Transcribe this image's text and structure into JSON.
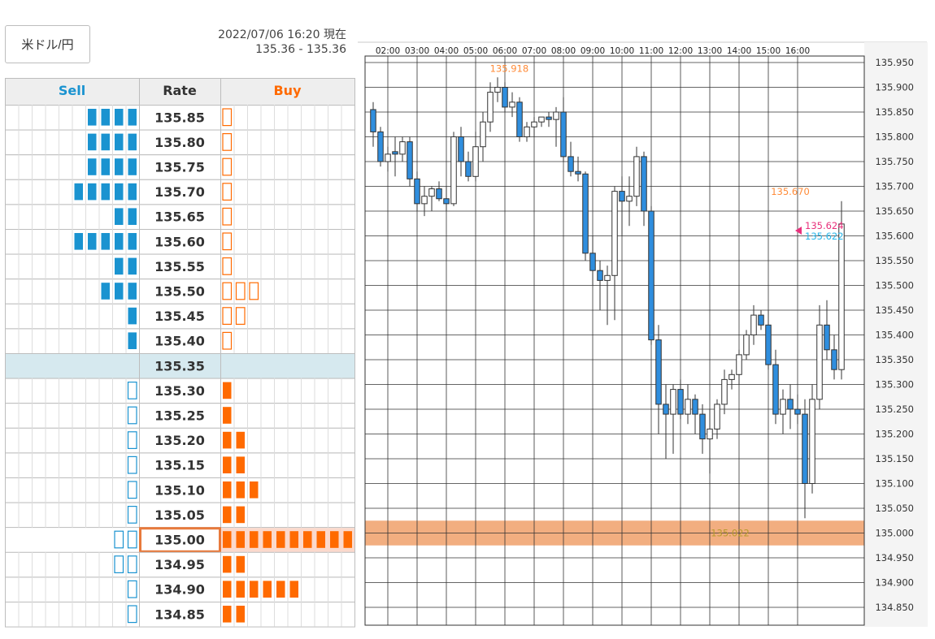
{
  "pair_label": "米ドル/円",
  "status": {
    "datetime": "2022/07/06 16:20 現在",
    "quote": "135.36 - 135.36"
  },
  "orderbook": {
    "headers": {
      "sell": "Sell",
      "rate": "Rate",
      "buy": "Buy"
    },
    "colors": {
      "sell": "#1a93d0",
      "buy": "#ff6a00",
      "current_row": "#d6e9ef",
      "highlight_border": "#e87a3c",
      "highlight_fill": "#fbd9cc"
    },
    "current_rate": "135.35",
    "highlight_rate": "135.00",
    "rows": [
      {
        "rate": "135.85",
        "sell": 4,
        "buy": 1
      },
      {
        "rate": "135.80",
        "sell": 4,
        "buy": 1
      },
      {
        "rate": "135.75",
        "sell": 4,
        "buy": 1
      },
      {
        "rate": "135.70",
        "sell": 5,
        "buy": 1
      },
      {
        "rate": "135.65",
        "sell": 2,
        "buy": 1
      },
      {
        "rate": "135.60",
        "sell": 5,
        "buy": 1
      },
      {
        "rate": "135.55",
        "sell": 2,
        "buy": 1
      },
      {
        "rate": "135.50",
        "sell": 3,
        "buy": 3
      },
      {
        "rate": "135.45",
        "sell": 1,
        "buy": 2
      },
      {
        "rate": "135.40",
        "sell": 1,
        "buy": 1
      },
      {
        "rate": "135.35",
        "sell": 0,
        "buy": 0
      },
      {
        "rate": "135.30",
        "sell": 1,
        "buy": 1
      },
      {
        "rate": "135.25",
        "sell": 1,
        "buy": 1
      },
      {
        "rate": "135.20",
        "sell": 1,
        "buy": 2
      },
      {
        "rate": "135.15",
        "sell": 1,
        "buy": 2
      },
      {
        "rate": "135.10",
        "sell": 1,
        "buy": 3
      },
      {
        "rate": "135.05",
        "sell": 1,
        "buy": 2
      },
      {
        "rate": "135.00",
        "sell": 2,
        "buy": 10
      },
      {
        "rate": "134.95",
        "sell": 2,
        "buy": 2
      },
      {
        "rate": "134.90",
        "sell": 1,
        "buy": 6
      },
      {
        "rate": "134.85",
        "sell": 1,
        "buy": 2
      }
    ]
  },
  "chart_data": {
    "type": "candlestick",
    "x_ticks": [
      "02:00",
      "03:00",
      "04:00",
      "05:00",
      "06:00",
      "07:00",
      "08:00",
      "09:00",
      "10:00",
      "11:00",
      "12:00",
      "13:00",
      "14:00",
      "15:00",
      "16:00"
    ],
    "y_ticks": [
      "135.950",
      "135.900",
      "135.850",
      "135.800",
      "135.750",
      "135.700",
      "135.650",
      "135.600",
      "135.550",
      "135.500",
      "135.450",
      "135.400",
      "135.350",
      "135.300",
      "135.250",
      "135.200",
      "135.150",
      "135.100",
      "135.050",
      "135.000",
      "134.950",
      "134.900",
      "134.850"
    ],
    "ylim": [
      134.85,
      135.95
    ],
    "grid": true,
    "colors": {
      "up_fill": "#ffffff",
      "down_fill": "#2f8ede",
      "candle_border": "#333333",
      "grid": "#333333",
      "band": "#f0a06a",
      "high_label": "#ff8b38",
      "ask_label": "#e8317c",
      "bid_label": "#28b5e8",
      "band_label": "#b89a2c"
    },
    "band": {
      "from": 134.975,
      "to": 135.025,
      "label": "135.022",
      "label_value": 135.0
    },
    "annotations": [
      {
        "text": "135.918",
        "x": 5.15,
        "y": 135.918,
        "color_key": "high_label"
      },
      {
        "text": "135.670",
        "x": 14.75,
        "y": 135.67,
        "color_key": "high_label"
      }
    ],
    "price_markers": [
      {
        "text": "135.624",
        "value": 135.624,
        "color_key": "ask_label"
      },
      {
        "text": "135.622",
        "value": 135.622,
        "color_key": "bid_label"
      }
    ],
    "candles": [
      [
        0.5,
        135.855,
        135.87,
        135.78,
        135.81
      ],
      [
        0.75,
        135.81,
        135.82,
        135.74,
        135.75
      ],
      [
        1.0,
        135.75,
        135.78,
        135.73,
        135.765
      ],
      [
        1.25,
        135.77,
        135.8,
        135.72,
        135.765
      ],
      [
        1.5,
        135.765,
        135.8,
        135.75,
        135.79
      ],
      [
        1.75,
        135.79,
        135.8,
        135.7,
        135.715
      ],
      [
        2.0,
        135.715,
        135.73,
        135.65,
        135.665
      ],
      [
        2.25,
        135.665,
        135.7,
        135.64,
        135.68
      ],
      [
        2.5,
        135.68,
        135.7,
        135.65,
        135.695
      ],
      [
        2.75,
        135.695,
        135.71,
        135.67,
        135.675
      ],
      [
        3.0,
        135.675,
        135.7,
        135.65,
        135.665
      ],
      [
        3.25,
        135.665,
        135.81,
        135.66,
        135.8
      ],
      [
        3.5,
        135.8,
        135.82,
        135.72,
        135.75
      ],
      [
        3.75,
        135.75,
        135.77,
        135.71,
        135.72
      ],
      [
        4.0,
        135.72,
        135.81,
        135.71,
        135.78
      ],
      [
        4.25,
        135.78,
        135.85,
        135.75,
        135.83
      ],
      [
        4.5,
        135.83,
        135.91,
        135.81,
        135.89
      ],
      [
        4.75,
        135.89,
        135.92,
        135.87,
        135.9
      ],
      [
        5.0,
        135.9,
        135.91,
        135.85,
        135.86
      ],
      [
        5.25,
        135.86,
        135.89,
        135.84,
        135.87
      ],
      [
        5.5,
        135.87,
        135.88,
        135.79,
        135.8
      ],
      [
        5.75,
        135.8,
        135.83,
        135.79,
        135.82
      ],
      [
        6.0,
        135.82,
        135.84,
        135.8,
        135.83
      ],
      [
        6.25,
        135.83,
        135.84,
        135.82,
        135.84
      ],
      [
        6.5,
        135.84,
        135.85,
        135.82,
        135.835
      ],
      [
        6.75,
        135.835,
        135.86,
        135.78,
        135.85
      ],
      [
        7.0,
        135.85,
        135.88,
        135.75,
        135.76
      ],
      [
        7.25,
        135.76,
        135.79,
        135.72,
        135.73
      ],
      [
        7.5,
        135.73,
        135.76,
        135.71,
        135.725
      ],
      [
        7.75,
        135.725,
        135.73,
        135.55,
        135.565
      ],
      [
        8.0,
        135.565,
        135.6,
        135.5,
        135.53
      ],
      [
        8.25,
        135.53,
        135.55,
        135.45,
        135.51
      ],
      [
        8.5,
        135.51,
        135.54,
        135.42,
        135.52
      ],
      [
        8.75,
        135.52,
        135.7,
        135.43,
        135.69
      ],
      [
        9.0,
        135.69,
        135.72,
        135.6,
        135.67
      ],
      [
        9.25,
        135.67,
        135.72,
        135.62,
        135.68
      ],
      [
        9.5,
        135.68,
        135.78,
        135.66,
        135.76
      ],
      [
        9.75,
        135.76,
        135.77,
        135.62,
        135.65
      ],
      [
        10.0,
        135.65,
        135.66,
        135.38,
        135.39
      ],
      [
        10.25,
        135.39,
        135.42,
        135.2,
        135.26
      ],
      [
        10.5,
        135.26,
        135.3,
        135.15,
        135.24
      ],
      [
        10.75,
        135.24,
        135.3,
        135.16,
        135.29
      ],
      [
        11.0,
        135.29,
        135.31,
        135.23,
        135.24
      ],
      [
        11.25,
        135.24,
        135.3,
        135.22,
        135.27
      ],
      [
        11.5,
        135.27,
        135.28,
        135.2,
        135.24
      ],
      [
        11.75,
        135.24,
        135.26,
        135.16,
        135.19
      ],
      [
        12.0,
        135.19,
        135.25,
        135.12,
        135.21
      ],
      [
        12.25,
        135.21,
        135.27,
        135.19,
        135.26
      ],
      [
        12.5,
        135.26,
        135.33,
        135.24,
        135.31
      ],
      [
        12.75,
        135.31,
        135.33,
        135.29,
        135.32
      ],
      [
        13.0,
        135.32,
        135.37,
        135.3,
        135.36
      ],
      [
        13.25,
        135.36,
        135.41,
        135.35,
        135.4
      ],
      [
        13.5,
        135.4,
        135.46,
        135.38,
        135.44
      ],
      [
        13.75,
        135.44,
        135.45,
        135.41,
        135.42
      ],
      [
        14.0,
        135.42,
        135.45,
        135.33,
        135.34
      ],
      [
        14.25,
        135.34,
        135.37,
        135.22,
        135.24
      ],
      [
        14.5,
        135.24,
        135.29,
        135.2,
        135.27
      ],
      [
        14.75,
        135.27,
        135.3,
        135.21,
        135.25
      ],
      [
        15.0,
        135.25,
        135.28,
        135.22,
        135.24
      ],
      [
        15.25,
        135.24,
        135.27,
        135.03,
        135.1
      ],
      [
        15.5,
        135.1,
        135.3,
        135.08,
        135.27
      ],
      [
        15.75,
        135.27,
        135.46,
        135.25,
        135.42
      ],
      [
        16.0,
        135.42,
        135.47,
        135.35,
        135.37
      ],
      [
        16.25,
        135.37,
        135.4,
        135.31,
        135.33
      ],
      [
        16.5,
        135.33,
        135.67,
        135.31,
        135.624
      ]
    ]
  }
}
